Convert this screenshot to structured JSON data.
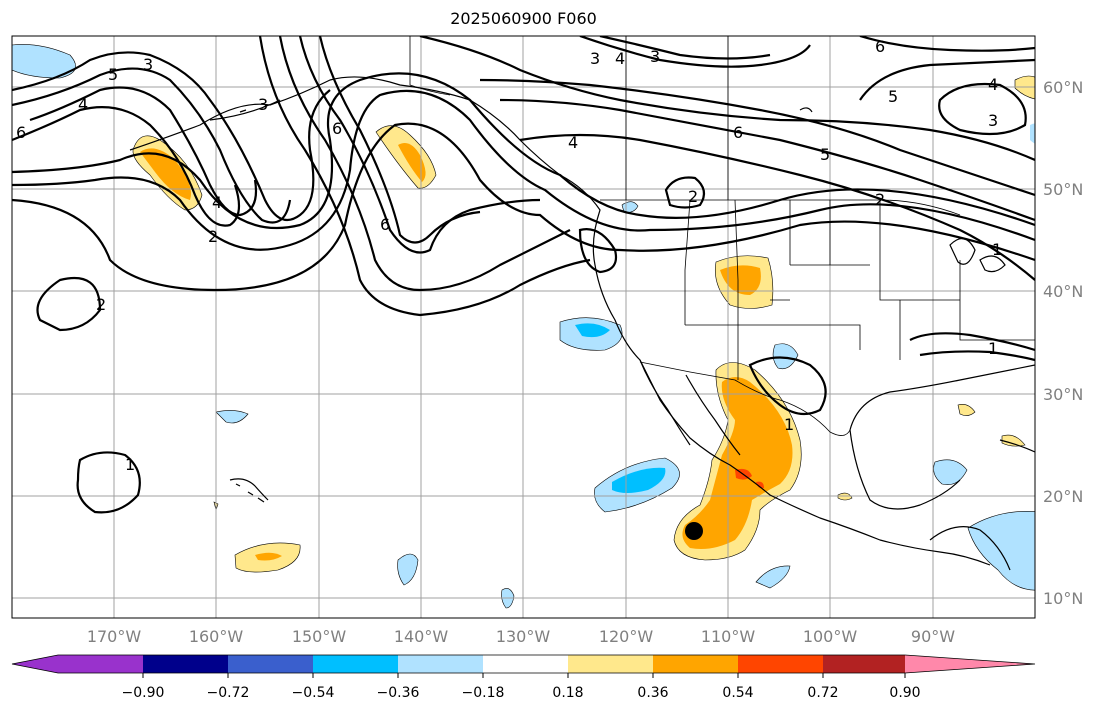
{
  "title": "2025060900 F060",
  "latitude_labels": [
    "60°N",
    "50°N",
    "40°N",
    "30°N",
    "20°N",
    "10°N"
  ],
  "longitude_labels": [
    "170°W",
    "160°W",
    "150°W",
    "140°W",
    "130°W",
    "120°W",
    "110°W",
    "100°W",
    "90°W"
  ],
  "colorbar": {
    "colors": [
      "#9932CC",
      "#00008B",
      "#3A5FCD",
      "#00BFFF",
      "#B0E2FF",
      "#FFFFFF",
      "#FFE88C",
      "#FFA500",
      "#FF4500",
      "#B22222",
      "#FF88AA"
    ],
    "tick_labels": [
      "−0.90",
      "−0.72",
      "−0.54",
      "−0.36",
      "−0.18",
      "0.18",
      "0.36",
      "0.54",
      "0.72",
      "0.90"
    ]
  },
  "contour_labels": [
    "5",
    "4",
    "3",
    "6",
    "3",
    "6",
    "4",
    "6",
    "3",
    "4",
    "3",
    "6",
    "5",
    "3",
    "4",
    "2",
    "2",
    "6",
    "5",
    "4",
    "2",
    "1",
    "1",
    "1",
    "1",
    "2"
  ],
  "marker": "black-dot"
}
